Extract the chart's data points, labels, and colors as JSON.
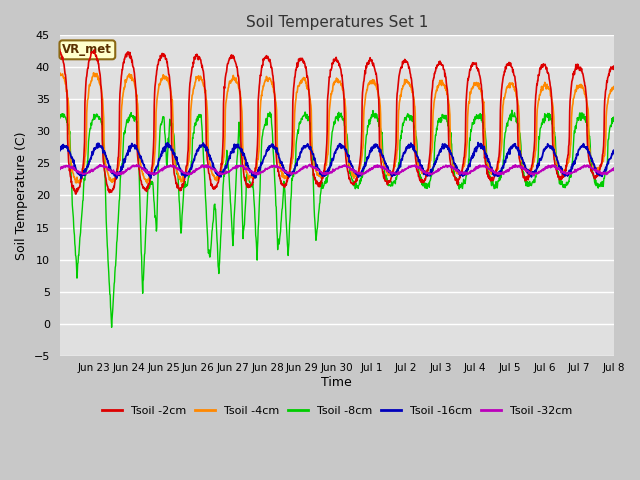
{
  "title": "Soil Temperatures Set 1",
  "xlabel": "Time",
  "ylabel": "Soil Temperature (C)",
  "ylim": [
    -5,
    45
  ],
  "yticks": [
    -5,
    0,
    5,
    10,
    15,
    20,
    25,
    30,
    35,
    40,
    45
  ],
  "fig_bg_color": "#c8c8c8",
  "plot_bg_color": "#e0e0e0",
  "grid_color": "#ffffff",
  "line_colors": {
    "2cm": "#dd0000",
    "4cm": "#ff8800",
    "8cm": "#00cc00",
    "16cm": "#0000bb",
    "32cm": "#bb00bb"
  },
  "tick_labels": [
    "Jun 23",
    "Jun 24",
    "Jun 25",
    "Jun 26",
    "Jun 27",
    "Jun 28",
    "Jun 29",
    "Jun 30",
    "Jul 1",
    "Jul 2",
    "Jul 3",
    "Jul 4",
    "Jul 5",
    "Jul 6",
    "Jul 7",
    "Jul 8"
  ],
  "legend_labels": [
    "Tsoil -2cm",
    "Tsoil -4cm",
    "Tsoil -8cm",
    "Tsoil -16cm",
    "Tsoil -32cm"
  ],
  "annotation_text": "VR_met"
}
